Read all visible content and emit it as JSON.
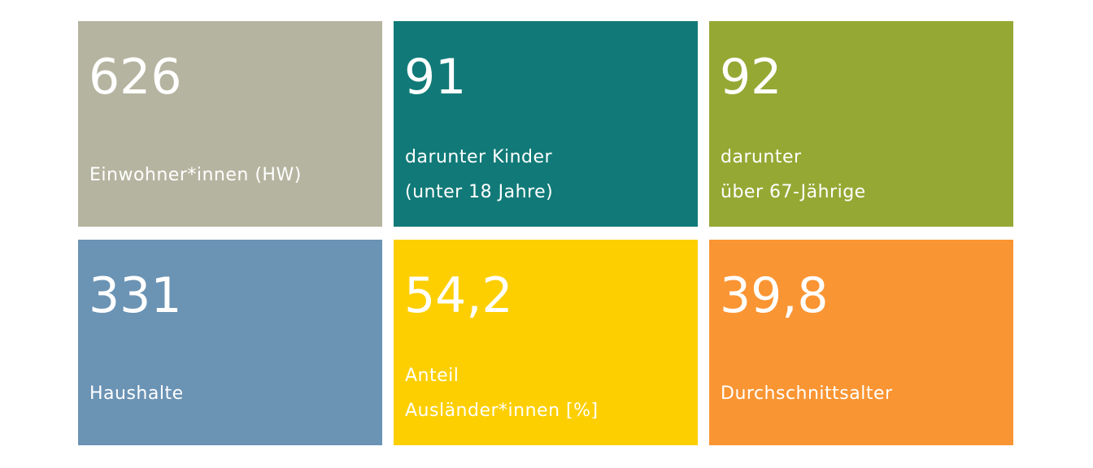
{
  "tiles": [
    {
      "value": "626",
      "label": [
        "Einwohner*innen (HW)"
      ],
      "color": "#b5b4a0"
    },
    {
      "value": "91",
      "label": [
        "darunter Kinder",
        "(unter 18 Jahre)"
      ],
      "color": "#117a78"
    },
    {
      "value": "92",
      "label": [
        "darunter",
        "über 67-Jährige"
      ],
      "color": "#96a834"
    },
    {
      "value": "331",
      "label": [
        "Haushalte"
      ],
      "color": "#6b93b4"
    },
    {
      "value": "54,2",
      "label": [
        "Anteil",
        "Ausländer*innen [%]"
      ],
      "color": "#fdcf00"
    },
    {
      "value": "39,8",
      "label": [
        "Durchschnittsalter"
      ],
      "color": "#fa9533"
    }
  ]
}
